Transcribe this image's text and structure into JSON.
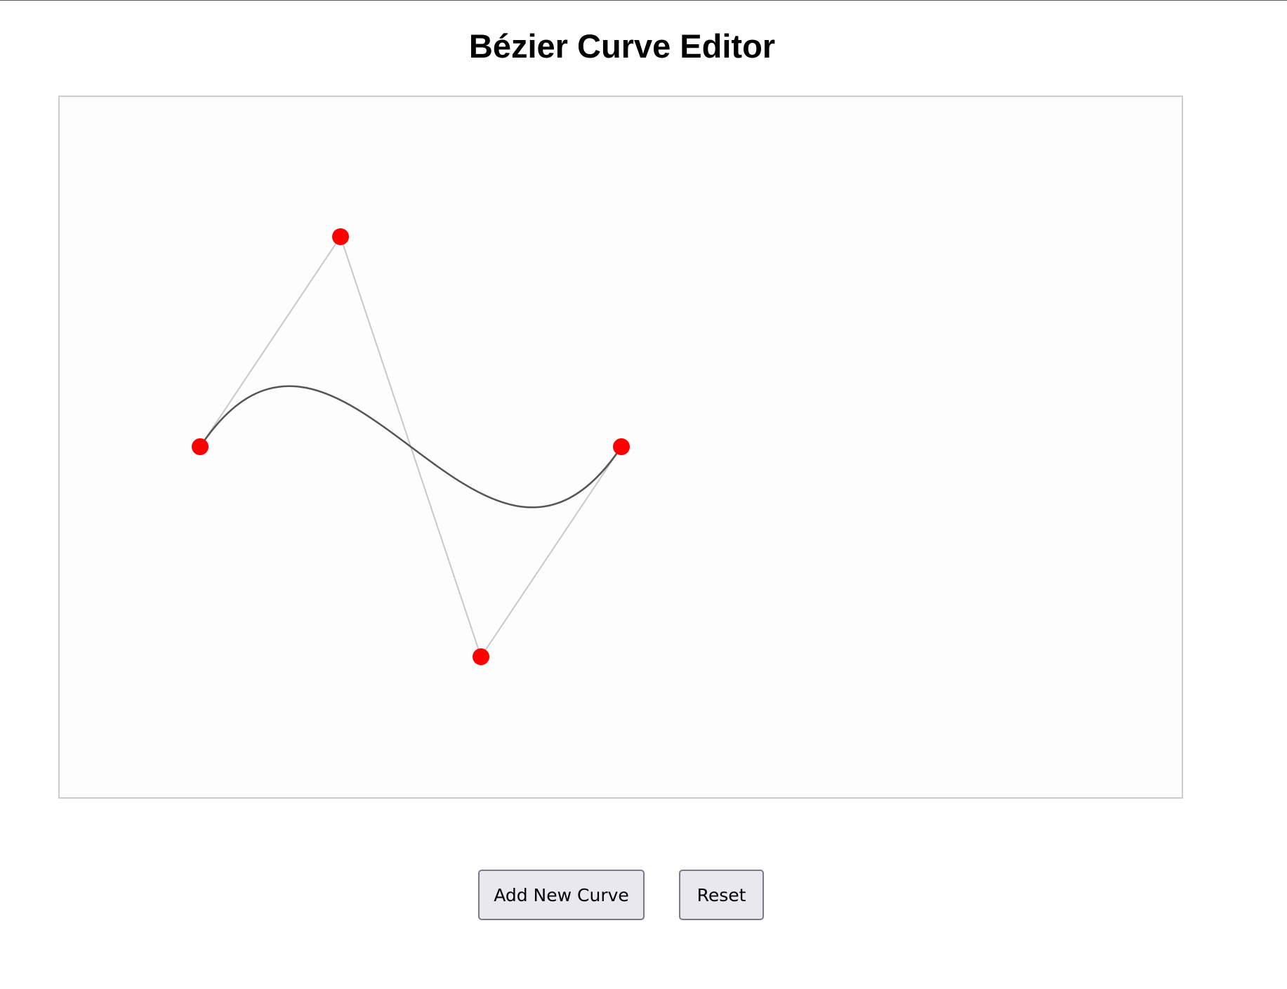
{
  "page": {
    "title": "Bézier Curve Editor"
  },
  "editor": {
    "background_color": "#fdfdfd",
    "curve_color": "#555555",
    "control_line_color": "#c8c8c8",
    "point_color": "#ff0000"
  },
  "toolbar": {
    "add_label": "Add New Curve",
    "reset_label": "Reset"
  }
}
